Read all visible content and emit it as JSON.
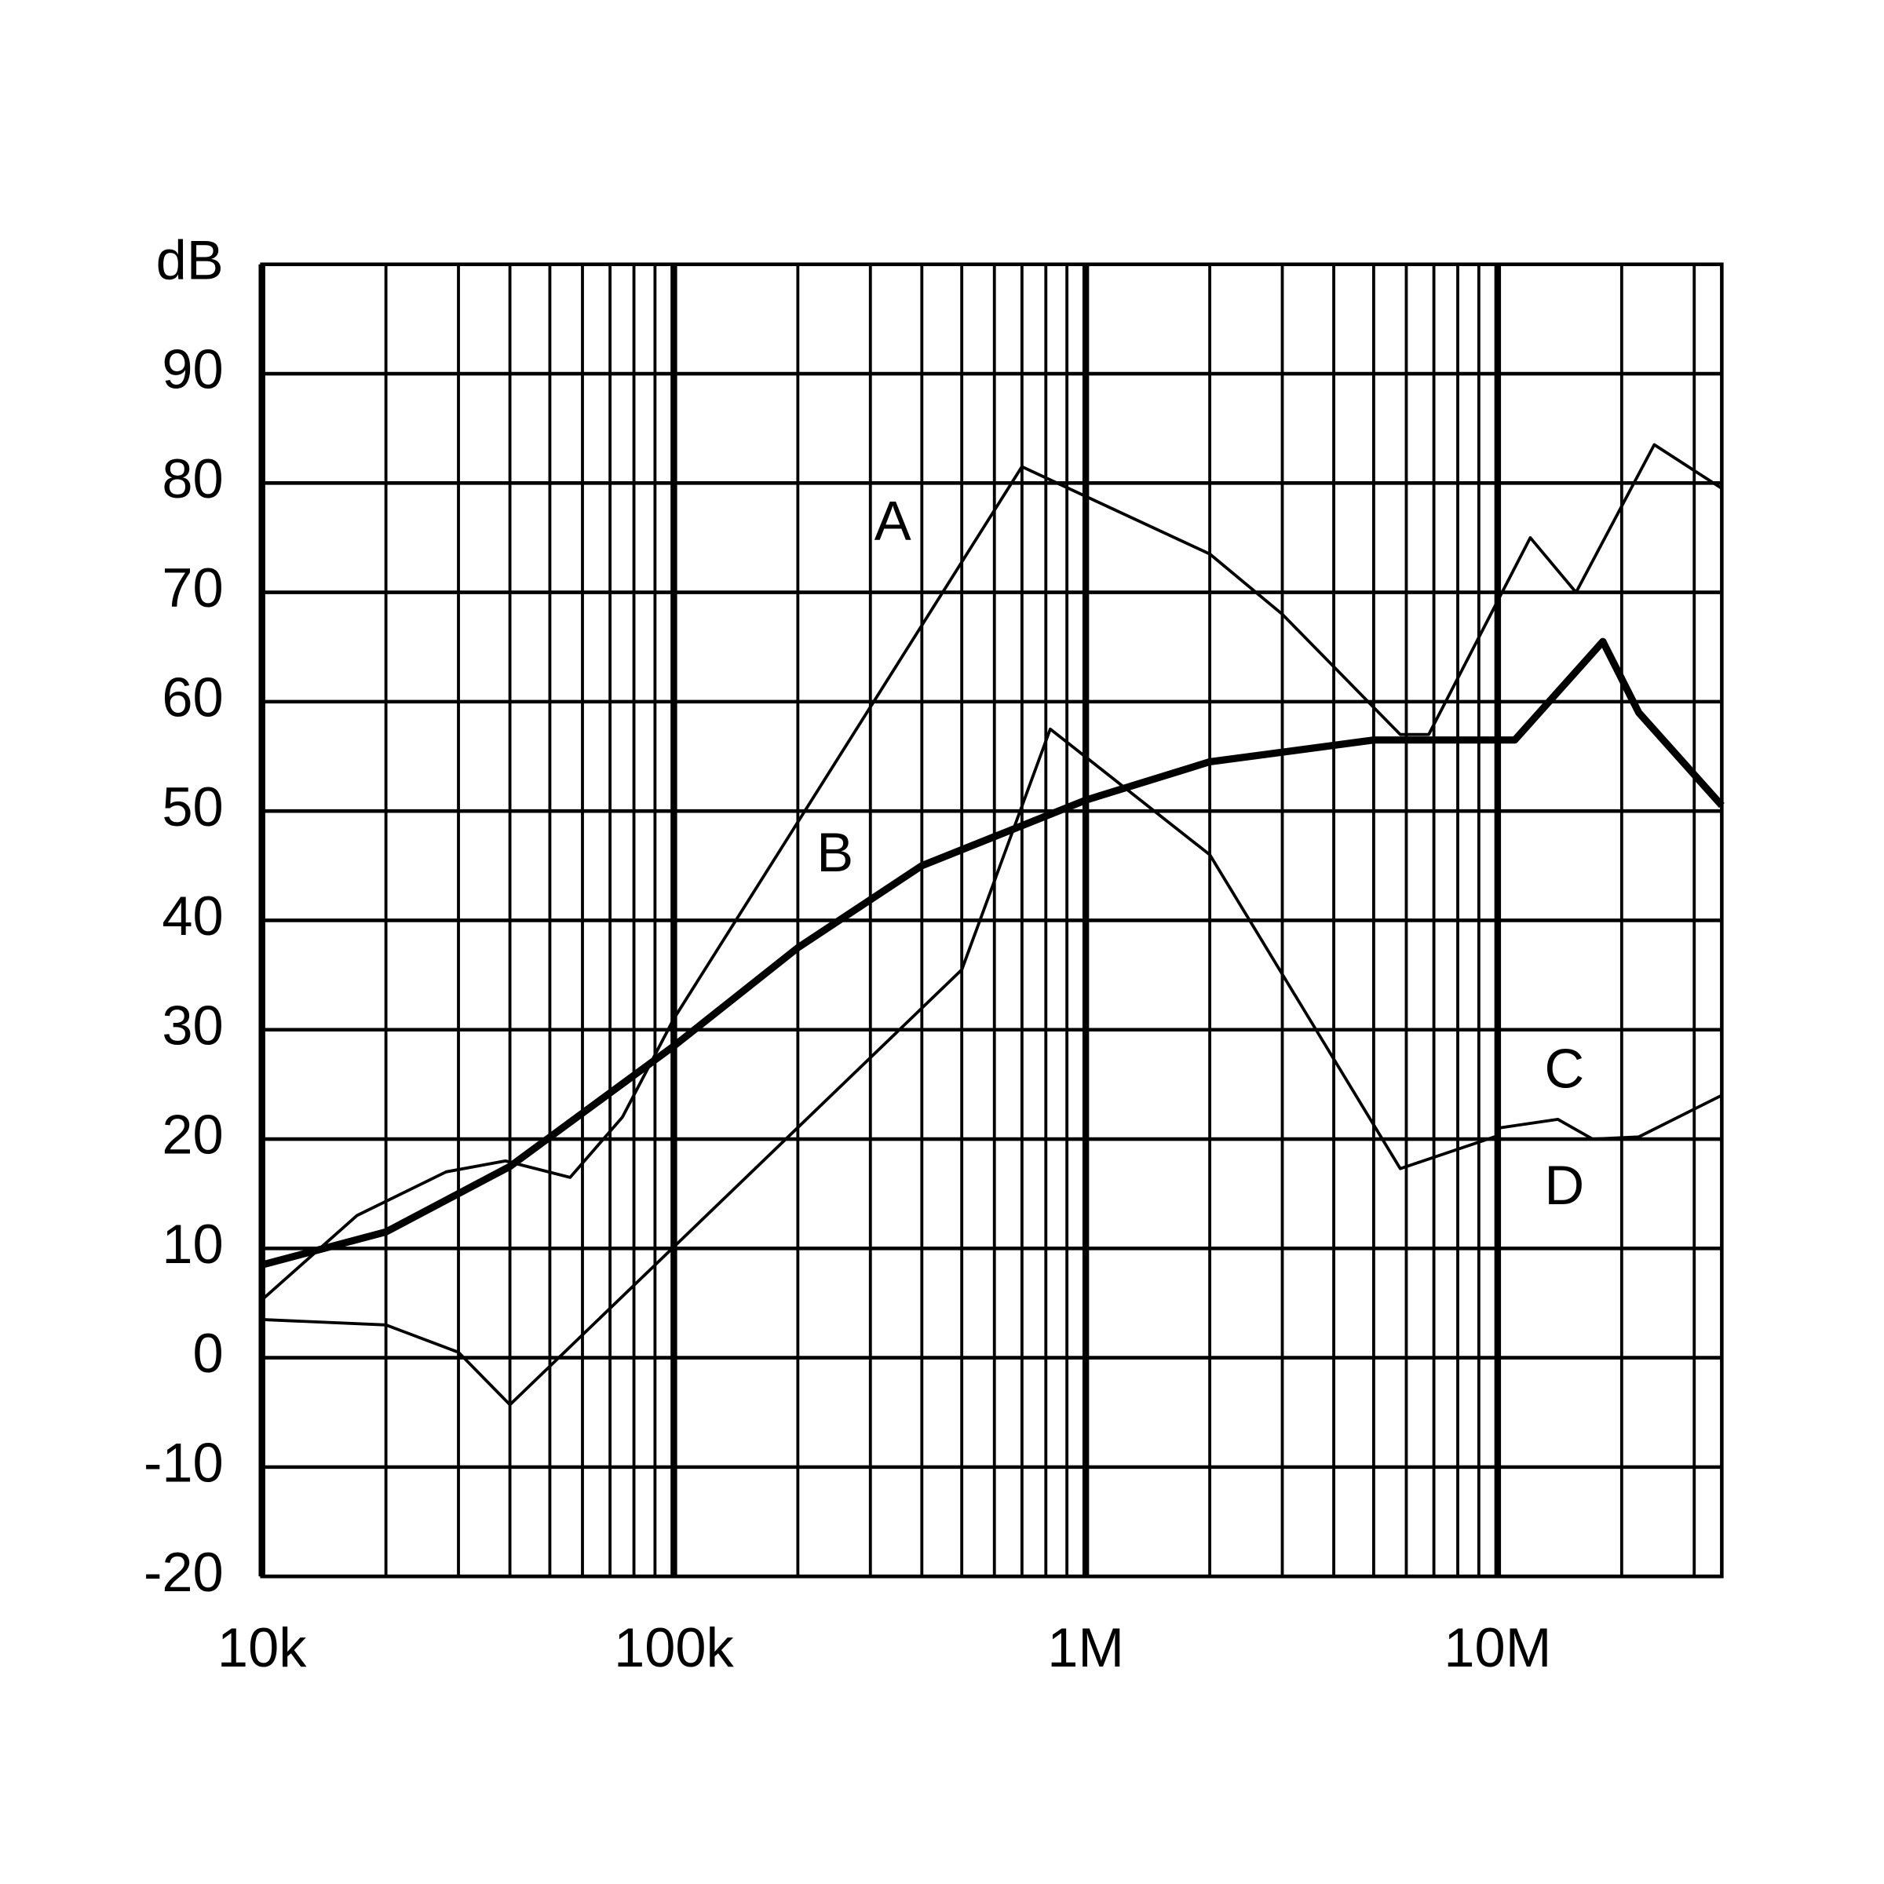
{
  "chart_data": {
    "type": "line",
    "log_x": true,
    "grid": true,
    "minor_grid": true,
    "color": "#000000",
    "xlim": [
      10000,
      35000000
    ],
    "xticks": [
      {
        "value": 10000,
        "label": "10k"
      },
      {
        "value": 100000,
        "label": "100k"
      },
      {
        "value": 1000000,
        "label": "1M"
      },
      {
        "value": 10000000,
        "label": "10M"
      }
    ],
    "ylim": [
      -20,
      100
    ],
    "yticks": [
      -20,
      -10,
      0,
      10,
      20,
      30,
      40,
      50,
      60,
      70,
      80,
      90,
      {
        "value": 100,
        "label": "dB"
      }
    ],
    "series": [
      {
        "name": "A",
        "color": "#000000",
        "x": [
          10000,
          17000,
          28000,
          39000,
          56000,
          75000,
          100000,
          700000,
          2000000,
          3000000,
          5800000,
          6800000,
          12000000,
          15500000,
          24000000,
          35000000
        ],
        "values": [
          5.3,
          13,
          17,
          18,
          16.5,
          22,
          31,
          81.5,
          73.5,
          68,
          57,
          57,
          75,
          70,
          83.5,
          79.5
        ]
      },
      {
        "name": "B",
        "color": "#000000",
        "x": [
          10000,
          20000,
          40000,
          100000,
          200000,
          400000,
          1000000,
          2000000,
          5000000,
          11000000,
          18000000,
          22000000,
          35000000
        ],
        "values": [
          8.5,
          11.5,
          17.5,
          28.5,
          37.5,
          45,
          51,
          54.5,
          56.5,
          56.5,
          65.5,
          59,
          50.5
        ]
      },
      {
        "name": "C",
        "color": "#000000",
        "x": [
          10000000,
          14000000,
          17000000,
          22000000,
          35000000
        ],
        "values": [
          21,
          21.8,
          20,
          20.2,
          24
        ]
      },
      {
        "name": "D",
        "color": "#000000",
        "x": [
          10000,
          20000,
          30000,
          40000,
          500000,
          820000,
          2000000,
          5800000,
          10000000
        ],
        "values": [
          3.5,
          3,
          0.5,
          -4.3,
          35.5,
          57.5,
          46,
          17.3,
          20.3
        ]
      }
    ]
  }
}
